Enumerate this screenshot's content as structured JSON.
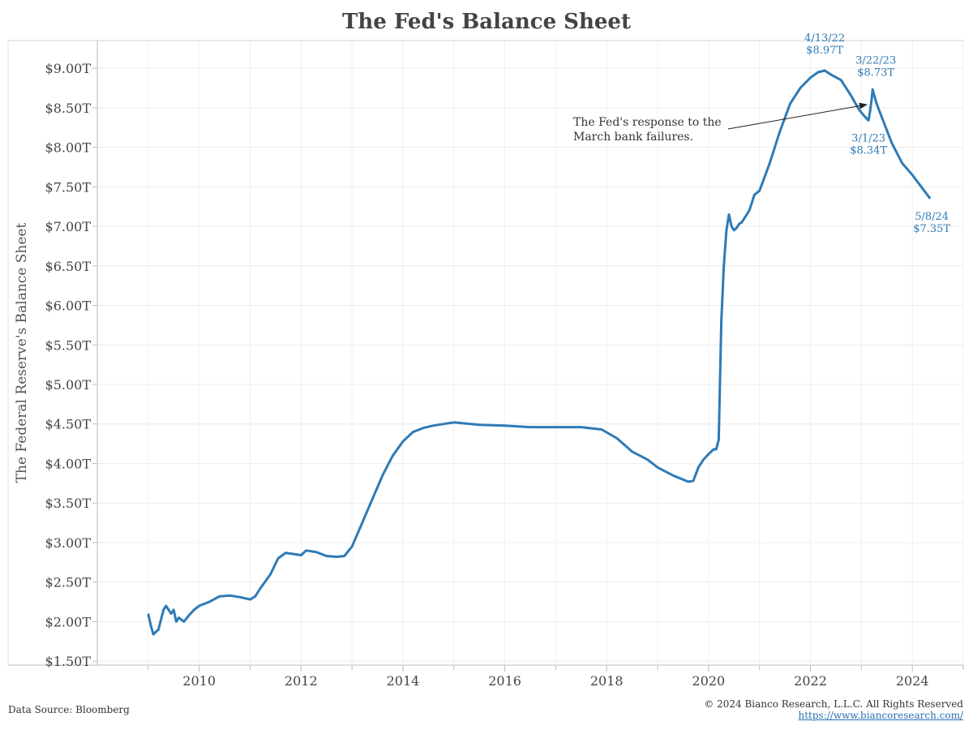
{
  "chart_data": {
    "type": "line",
    "title": "The Fed's Balance Sheet",
    "ylabel": "The Federal Reserve's Balance Sheet",
    "xlabel": "",
    "xlim": [
      2008.0,
      2025.0
    ],
    "ylim": [
      1.45,
      9.35
    ],
    "x_ticks": [
      2010,
      2012,
      2014,
      2016,
      2018,
      2020,
      2022,
      2024
    ],
    "y_ticks": [
      1.5,
      2.0,
      2.5,
      3.0,
      3.5,
      4.0,
      4.5,
      5.0,
      5.5,
      6.0,
      6.5,
      7.0,
      7.5,
      8.0,
      8.5,
      9.0
    ],
    "y_tick_labels": [
      "$1.50T",
      "$2.00T",
      "$2.50T",
      "$3.00T",
      "$3.50T",
      "$4.00T",
      "$4.50T",
      "$5.00T",
      "$5.50T",
      "$6.00T",
      "$6.50T",
      "$7.00T",
      "$7.50T",
      "$8.00T",
      "$8.50T",
      "$9.00T"
    ],
    "grid": true,
    "line_color": "#2e7ab6",
    "series": [
      {
        "name": "",
        "x": [
          2009.0,
          2009.05,
          2009.1,
          2009.2,
          2009.3,
          2009.35,
          2009.45,
          2009.5,
          2009.55,
          2009.6,
          2009.7,
          2009.8,
          2009.9,
          2010.0,
          2010.2,
          2010.4,
          2010.6,
          2010.8,
          2011.0,
          2011.1,
          2011.2,
          2011.4,
          2011.55,
          2011.7,
          2011.9,
          2012.0,
          2012.1,
          2012.3,
          2012.5,
          2012.7,
          2012.85,
          2013.0,
          2013.2,
          2013.4,
          2013.6,
          2013.8,
          2014.0,
          2014.2,
          2014.4,
          2014.6,
          2014.8,
          2015.0,
          2015.5,
          2016.0,
          2016.5,
          2017.0,
          2017.5,
          2017.9,
          2018.2,
          2018.5,
          2018.8,
          2019.0,
          2019.3,
          2019.6,
          2019.7,
          2019.8,
          2019.9,
          2020.0,
          2020.1,
          2020.15,
          2020.2,
          2020.25,
          2020.3,
          2020.35,
          2020.4,
          2020.45,
          2020.5,
          2020.55,
          2020.6,
          2020.65,
          2020.7,
          2020.8,
          2020.9,
          2021.0,
          2021.2,
          2021.4,
          2021.6,
          2021.8,
          2022.0,
          2022.15,
          2022.28,
          2022.4,
          2022.6,
          2022.8,
          2022.95,
          2023.05,
          2023.14,
          2023.17,
          2023.2,
          2023.22,
          2023.3,
          2023.4,
          2023.6,
          2023.8,
          2024.0,
          2024.2,
          2024.35
        ],
        "values": [
          2.1,
          1.95,
          1.84,
          1.9,
          2.15,
          2.2,
          2.1,
          2.15,
          2.0,
          2.05,
          2.0,
          2.08,
          2.15,
          2.2,
          2.25,
          2.32,
          2.33,
          2.31,
          2.28,
          2.32,
          2.42,
          2.6,
          2.8,
          2.87,
          2.85,
          2.84,
          2.9,
          2.88,
          2.83,
          2.82,
          2.83,
          2.95,
          3.25,
          3.55,
          3.85,
          4.1,
          4.28,
          4.4,
          4.45,
          4.48,
          4.5,
          4.52,
          4.49,
          4.48,
          4.46,
          4.46,
          4.46,
          4.43,
          4.32,
          4.15,
          4.05,
          3.95,
          3.85,
          3.77,
          3.78,
          3.95,
          4.05,
          4.12,
          4.18,
          4.18,
          4.3,
          5.8,
          6.5,
          6.95,
          7.15,
          7.0,
          6.95,
          6.98,
          7.03,
          7.05,
          7.1,
          7.2,
          7.4,
          7.45,
          7.8,
          8.2,
          8.55,
          8.75,
          8.88,
          8.95,
          8.97,
          8.92,
          8.85,
          8.65,
          8.48,
          8.4,
          8.34,
          8.45,
          8.6,
          8.73,
          8.55,
          8.38,
          8.05,
          7.8,
          7.65,
          7.48,
          7.35
        ]
      }
    ],
    "annotations": [
      {
        "date": "4/13/22",
        "value_label": "$8.97T",
        "x": 2022.28,
        "y": 8.97
      },
      {
        "date": "3/22/23",
        "value_label": "$8.73T",
        "x": 2023.22,
        "y": 8.73
      },
      {
        "date": "3/1/23",
        "value_label": "$8.34T",
        "x": 2023.14,
        "y": 8.34
      },
      {
        "date": "5/8/24",
        "value_label": "$7.35T",
        "x": 2024.35,
        "y": 7.35
      }
    ],
    "callout": {
      "text_line1": "The Fed's response to the",
      "text_line2": "March bank failures.",
      "arrow_target": {
        "x": 2023.2,
        "y": 8.55
      }
    }
  },
  "footer": {
    "source": "Data Source: Bloomberg",
    "copyright": "© 2024 Bianco Research, L.L.C. All Rights Reserved",
    "url": "https://www.biancoresearch.com/"
  }
}
